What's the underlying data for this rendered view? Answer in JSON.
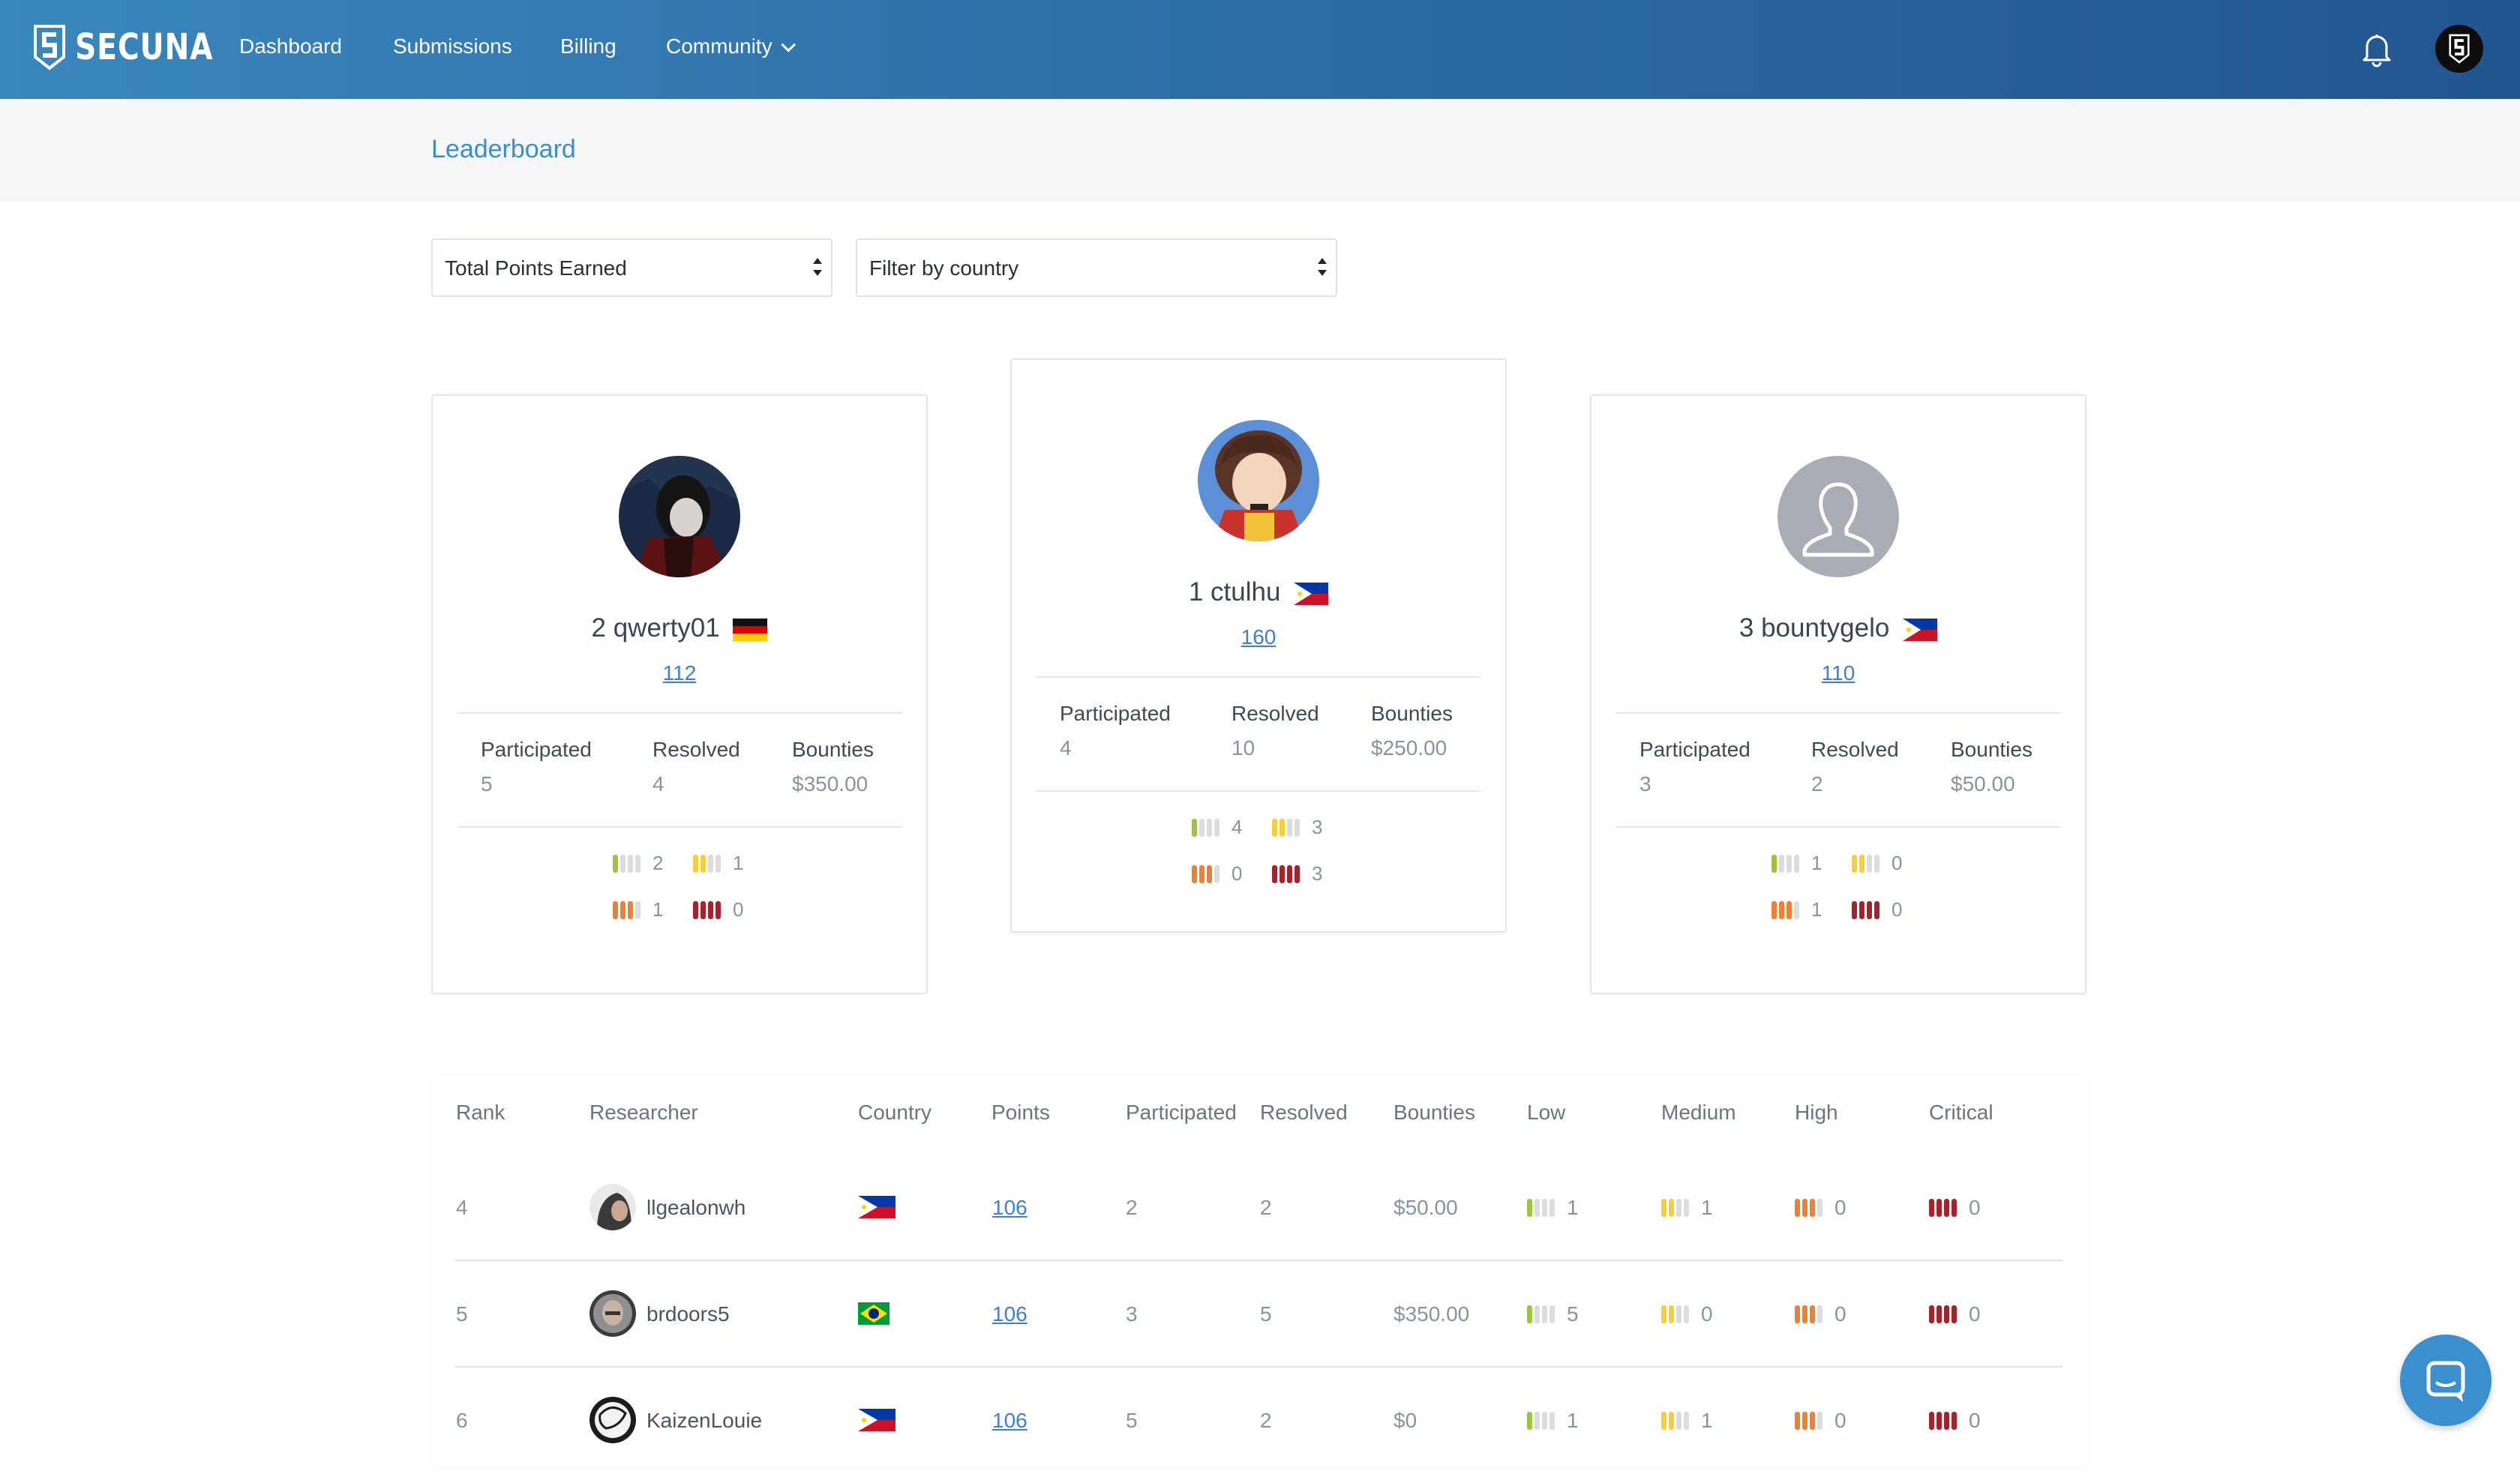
{
  "brand": {
    "name": "SECUNA"
  },
  "nav": [
    {
      "label": "Dashboard"
    },
    {
      "label": "Submissions"
    },
    {
      "label": "Billing"
    },
    {
      "label": "Community"
    }
  ],
  "page": {
    "title": "Leaderboard"
  },
  "filters": {
    "sort_selected": "Total Points Earned",
    "country_selected": "Filter by country"
  },
  "stat_labels": {
    "participated": "Participated",
    "resolved": "Resolved",
    "bounties": "Bounties"
  },
  "podium": [
    {
      "rank": "2",
      "username": "qwerty01",
      "country": "germany",
      "points": "112",
      "participated": "5",
      "resolved": "4",
      "bounties": "$350.00",
      "low": "2",
      "medium": "1",
      "high": "1",
      "critical": "0"
    },
    {
      "rank": "1",
      "username": "ctulhu",
      "country": "philippines",
      "points": "160",
      "participated": "4",
      "resolved": "10",
      "bounties": "$250.00",
      "low": "4",
      "medium": "3",
      "high": "0",
      "critical": "3"
    },
    {
      "rank": "3",
      "username": "bountygelo",
      "country": "philippines",
      "points": "110",
      "participated": "3",
      "resolved": "2",
      "bounties": "$50.00",
      "low": "1",
      "medium": "0",
      "high": "1",
      "critical": "0"
    }
  ],
  "table": {
    "headers": [
      "Rank",
      "Researcher",
      "Country",
      "Points",
      "Participated",
      "Resolved",
      "Bounties",
      "Low",
      "Medium",
      "High",
      "Critical"
    ],
    "rows": [
      {
        "rank": "4",
        "username": "llgealonwh",
        "country": "philippines",
        "points": "106",
        "participated": "2",
        "resolved": "2",
        "bounties": "$50.00",
        "low": "1",
        "medium": "1",
        "high": "0",
        "critical": "0"
      },
      {
        "rank": "5",
        "username": "brdoors5",
        "country": "brazil",
        "points": "106",
        "participated": "3",
        "resolved": "5",
        "bounties": "$350.00",
        "low": "5",
        "medium": "0",
        "high": "0",
        "critical": "0"
      },
      {
        "rank": "6",
        "username": "KaizenLouie",
        "country": "philippines",
        "points": "106",
        "participated": "5",
        "resolved": "2",
        "bounties": "$0",
        "low": "1",
        "medium": "1",
        "high": "0",
        "critical": "0"
      }
    ]
  },
  "severity_colors": {
    "low": "#9bc53d",
    "medium": "#f5cf3a",
    "high": "#ef7f33",
    "critical": "#a3242c",
    "empty": "#dcdcdc"
  },
  "brand_colors": {
    "header_start": "#3a86bd",
    "header_end": "#225591",
    "link": "#3d7fd0"
  },
  "icons": [
    "secuna-logo-icon",
    "bell-icon",
    "chevron-down-icon",
    "messenger-chat-icon",
    "default-avatar-icon"
  ]
}
